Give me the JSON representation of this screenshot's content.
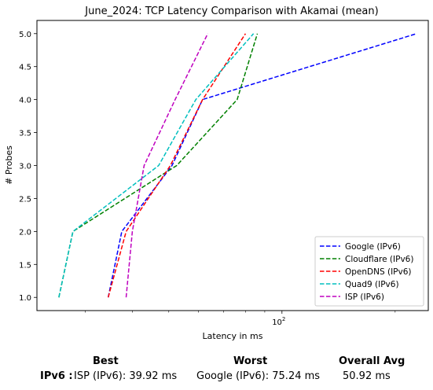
{
  "chart_data": {
    "type": "line",
    "title": "June_2024: TCP Latency Comparison with Akamai (mean)",
    "xlabel": "Latency in ms",
    "ylabel": "# Probes",
    "xscale": "log",
    "xlim": [
      22.3,
      245
    ],
    "ylim": [
      0.8,
      5.2
    ],
    "x_tick_labels": [
      {
        "value": 100,
        "label": "10^2"
      }
    ],
    "y_ticks": [
      1.0,
      1.5,
      2.0,
      2.5,
      3.0,
      3.5,
      4.0,
      4.5,
      5.0
    ],
    "y_tick_labels": [
      "1.0",
      "1.5",
      "2.0",
      "2.5",
      "3.0",
      "3.5",
      "4.0",
      "4.5",
      "5.0"
    ],
    "grid": false,
    "legend_position": "lower-right",
    "line_style": "dashed",
    "series": [
      {
        "name": "Google (IPv6)",
        "color": "#0000ff",
        "x": [
          34.5,
          37.5,
          51.0,
          61.5,
          228.0
        ],
        "y": [
          1,
          2,
          3,
          4,
          5
        ]
      },
      {
        "name": "Cloudflare (IPv6)",
        "color": "#008000",
        "x": [
          25.5,
          27.8,
          52.5,
          76.0,
          86.0
        ],
        "y": [
          1,
          2,
          3,
          4,
          5
        ]
      },
      {
        "name": "OpenDNS (IPv6)",
        "color": "#ff0000",
        "x": [
          34.5,
          38.5,
          50.5,
          61.5,
          80.0
        ],
        "y": [
          1,
          2,
          3,
          4,
          5
        ]
      },
      {
        "name": "Quad9 (IPv6)",
        "color": "#00bfbf",
        "x": [
          25.5,
          27.8,
          47.0,
          59.0,
          84.0
        ],
        "y": [
          1,
          2,
          3,
          4,
          5
        ]
      },
      {
        "name": "ISP (IPv6)",
        "color": "#bf00bf",
        "x": [
          38.5,
          40.0,
          43.0,
          52.0,
          63.5
        ],
        "y": [
          1,
          2,
          3,
          4,
          5
        ]
      }
    ]
  },
  "summary": {
    "best_header": "Best",
    "worst_header": "Worst",
    "avg_header": "Overall Avg",
    "row_label": "IPv6 :",
    "best_value": "ISP (IPv6): 39.92 ms",
    "worst_value": "Google (IPv6): 75.24 ms",
    "avg_value": "50.92 ms"
  }
}
